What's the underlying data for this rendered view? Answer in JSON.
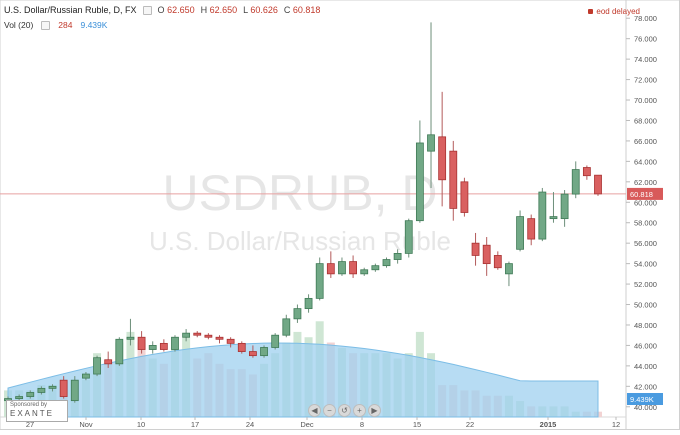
{
  "header": {
    "symbol_line": "U.S. Dollar/Russian Ruble, D, FX",
    "o_label": "O",
    "o_value": "62.650",
    "h_label": "H",
    "h_value": "62.650",
    "l_label": "L",
    "l_value": "60.626",
    "c_label": "C",
    "c_value": "60.818",
    "vol_label": "Vol (20)",
    "vol_value": "284",
    "vol_ma": "9.439K",
    "eod": "eod delayed"
  },
  "watermark": {
    "ticker": "USDRUB, D",
    "name": "U.S. Dollar/Russian Ruble"
  },
  "sponsor": {
    "line1": "Sponsored by",
    "line2": "EXANTE"
  },
  "nav_buttons": [
    "◀",
    "−",
    "↺",
    "+",
    "▶"
  ],
  "colors": {
    "up": "#6aa27f",
    "down": "#cc4b4b",
    "up_fill": "#71a886",
    "down_fill": "#d96060",
    "vol_up": "#cfe6d4",
    "vol_down": "#f2d3d3",
    "area": "#9fd0ef"
  },
  "chart_data": {
    "type": "candlestick",
    "y_axis": {
      "min": 39,
      "max": 79,
      "ticks": [
        40,
        42,
        44,
        46,
        48,
        50,
        52,
        54,
        56,
        58,
        60,
        62,
        64,
        66,
        68,
        70,
        72,
        74,
        76,
        78
      ],
      "current_value": "60.818",
      "volume_value": "9.439K"
    },
    "x_ticks": [
      "27",
      "Nov",
      "10",
      "17",
      "24",
      "Dec",
      "8",
      "15",
      "22",
      "2015",
      "12"
    ],
    "candles": [
      {
        "o": 40.6,
        "h": 41.0,
        "l": 40.4,
        "c": 40.8,
        "v": 5
      },
      {
        "o": 40.8,
        "h": 41.2,
        "l": 40.6,
        "c": 41.0,
        "v": 5
      },
      {
        "o": 41.0,
        "h": 41.6,
        "l": 40.8,
        "c": 41.4,
        "v": 5
      },
      {
        "o": 41.4,
        "h": 42.0,
        "l": 41.2,
        "c": 41.8,
        "v": 6
      },
      {
        "o": 41.8,
        "h": 42.2,
        "l": 41.5,
        "c": 42.0,
        "v": 6
      },
      {
        "o": 42.6,
        "h": 43.0,
        "l": 40.8,
        "c": 41.0,
        "v": 5
      },
      {
        "o": 40.6,
        "h": 43.0,
        "l": 40.4,
        "c": 42.6,
        "v": 7
      },
      {
        "o": 42.8,
        "h": 43.4,
        "l": 42.6,
        "c": 43.2,
        "v": 7
      },
      {
        "o": 43.2,
        "h": 45.0,
        "l": 43.0,
        "c": 44.8,
        "v": 12
      },
      {
        "o": 44.6,
        "h": 45.4,
        "l": 43.8,
        "c": 44.2,
        "v": 10
      },
      {
        "o": 44.2,
        "h": 46.8,
        "l": 44.0,
        "c": 46.6,
        "v": 14
      },
      {
        "o": 46.6,
        "h": 48.6,
        "l": 46.0,
        "c": 46.8,
        "v": 16
      },
      {
        "o": 46.8,
        "h": 47.4,
        "l": 45.2,
        "c": 45.6,
        "v": 14
      },
      {
        "o": 45.6,
        "h": 46.4,
        "l": 45.2,
        "c": 46.0,
        "v": 11
      },
      {
        "o": 46.2,
        "h": 46.6,
        "l": 45.4,
        "c": 45.6,
        "v": 10
      },
      {
        "o": 45.6,
        "h": 47.0,
        "l": 45.4,
        "c": 46.8,
        "v": 13
      },
      {
        "o": 46.8,
        "h": 47.6,
        "l": 46.4,
        "c": 47.2,
        "v": 15
      },
      {
        "o": 47.2,
        "h": 47.4,
        "l": 46.8,
        "c": 47.0,
        "v": 11
      },
      {
        "o": 47.0,
        "h": 47.2,
        "l": 46.6,
        "c": 46.8,
        "v": 12
      },
      {
        "o": 46.8,
        "h": 47.0,
        "l": 46.2,
        "c": 46.6,
        "v": 10
      },
      {
        "o": 46.6,
        "h": 46.8,
        "l": 45.8,
        "c": 46.2,
        "v": 9
      },
      {
        "o": 46.2,
        "h": 46.4,
        "l": 45.2,
        "c": 45.4,
        "v": 9
      },
      {
        "o": 45.4,
        "h": 46.0,
        "l": 44.8,
        "c": 45.0,
        "v": 8
      },
      {
        "o": 45.0,
        "h": 46.0,
        "l": 44.8,
        "c": 45.8,
        "v": 10
      },
      {
        "o": 45.8,
        "h": 47.2,
        "l": 45.6,
        "c": 47.0,
        "v": 12
      },
      {
        "o": 47.0,
        "h": 49.0,
        "l": 46.8,
        "c": 48.6,
        "v": 14
      },
      {
        "o": 48.6,
        "h": 50.0,
        "l": 48.2,
        "c": 49.6,
        "v": 16
      },
      {
        "o": 49.6,
        "h": 51.0,
        "l": 49.2,
        "c": 50.6,
        "v": 15
      },
      {
        "o": 50.6,
        "h": 54.6,
        "l": 50.4,
        "c": 54.0,
        "v": 18
      },
      {
        "o": 54.0,
        "h": 55.2,
        "l": 52.6,
        "c": 53.0,
        "v": 14
      },
      {
        "o": 53.0,
        "h": 54.6,
        "l": 52.8,
        "c": 54.2,
        "v": 13
      },
      {
        "o": 54.2,
        "h": 54.8,
        "l": 52.6,
        "c": 53.0,
        "v": 12
      },
      {
        "o": 53.0,
        "h": 53.6,
        "l": 52.8,
        "c": 53.4,
        "v": 12
      },
      {
        "o": 53.4,
        "h": 54.0,
        "l": 53.2,
        "c": 53.8,
        "v": 12
      },
      {
        "o": 53.8,
        "h": 54.6,
        "l": 53.6,
        "c": 54.4,
        "v": 12
      },
      {
        "o": 54.4,
        "h": 55.4,
        "l": 54.0,
        "c": 55.0,
        "v": 11
      },
      {
        "o": 55.0,
        "h": 58.4,
        "l": 54.6,
        "c": 58.2,
        "v": 12
      },
      {
        "o": 58.2,
        "h": 68.0,
        "l": 58.0,
        "c": 65.8,
        "v": 16
      },
      {
        "o": 65.0,
        "h": 77.6,
        "l": 61.4,
        "c": 66.6,
        "v": 12
      },
      {
        "o": 66.4,
        "h": 70.8,
        "l": 59.6,
        "c": 62.2,
        "v": 6
      },
      {
        "o": 65.0,
        "h": 66.0,
        "l": 58.2,
        "c": 59.4,
        "v": 6
      },
      {
        "o": 62.0,
        "h": 62.4,
        "l": 58.6,
        "c": 59.0,
        "v": 5
      },
      {
        "o": 56.0,
        "h": 57.0,
        "l": 53.8,
        "c": 54.8,
        "v": 5
      },
      {
        "o": 55.8,
        "h": 56.6,
        "l": 52.8,
        "c": 54.0,
        "v": 4
      },
      {
        "o": 54.8,
        "h": 55.2,
        "l": 53.4,
        "c": 53.6,
        "v": 4
      },
      {
        "o": 53.0,
        "h": 54.2,
        "l": 51.8,
        "c": 54.0,
        "v": 4
      },
      {
        "o": 55.4,
        "h": 59.2,
        "l": 55.2,
        "c": 58.6,
        "v": 3
      },
      {
        "o": 58.4,
        "h": 58.8,
        "l": 55.8,
        "c": 56.4,
        "v": 2
      },
      {
        "o": 56.4,
        "h": 61.4,
        "l": 56.2,
        "c": 61.0,
        "v": 2
      },
      {
        "o": 58.4,
        "h": 61.0,
        "l": 58.0,
        "c": 58.6,
        "v": 2
      },
      {
        "o": 58.4,
        "h": 61.2,
        "l": 57.6,
        "c": 60.8,
        "v": 2
      },
      {
        "o": 60.8,
        "h": 64.0,
        "l": 60.4,
        "c": 63.2,
        "v": 1
      },
      {
        "o": 63.4,
        "h": 63.6,
        "l": 62.2,
        "c": 62.6,
        "v": 1
      },
      {
        "o": 62.65,
        "h": 62.65,
        "l": 60.626,
        "c": 60.818,
        "v": 1
      }
    ]
  }
}
